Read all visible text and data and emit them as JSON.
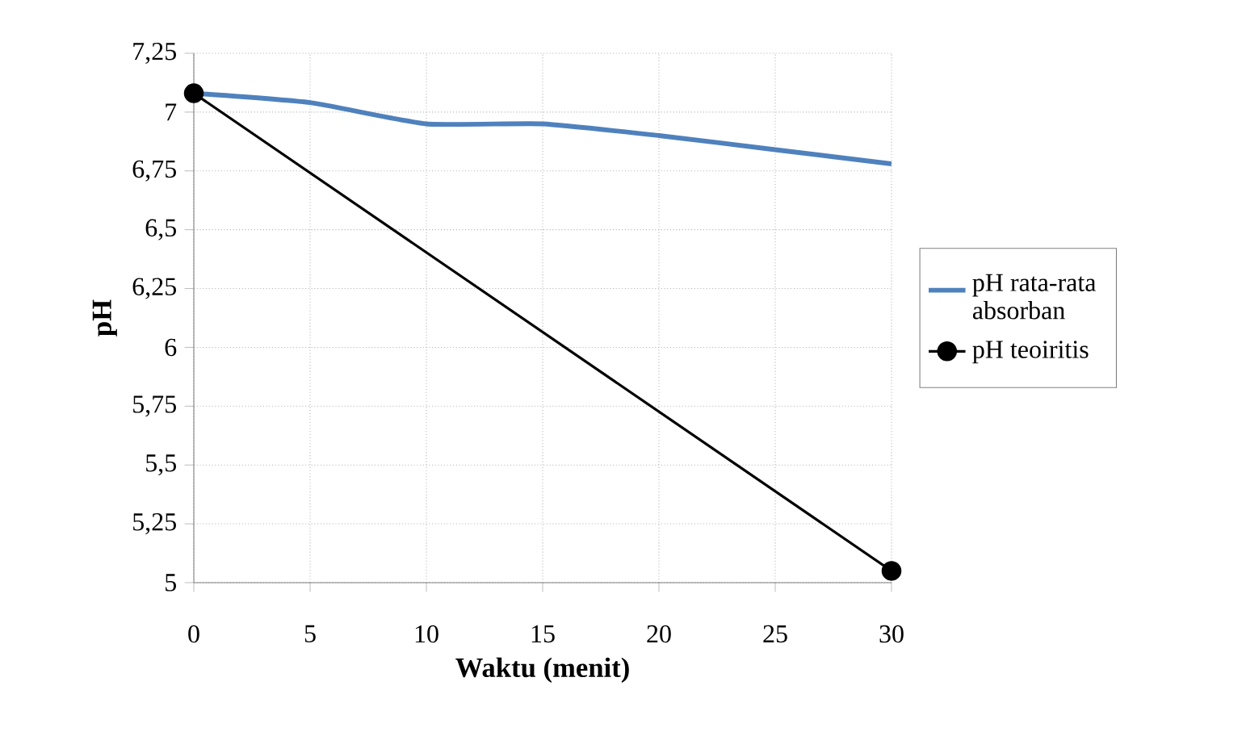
{
  "chart_data": {
    "type": "line",
    "xlabel": "Waktu (menit)",
    "ylabel": "pH",
    "x": [
      0,
      5,
      10,
      15,
      20,
      25,
      30
    ],
    "series": [
      {
        "name": "pH rata-rata absorban",
        "color": "#4f81bd",
        "marker": "none",
        "values": [
          7.08,
          7.04,
          6.95,
          6.95,
          6.9,
          6.84,
          6.78
        ]
      },
      {
        "name": "pH teoiritis",
        "color": "#000000",
        "marker": "circle",
        "x": [
          0,
          30
        ],
        "values": [
          7.08,
          5.05
        ]
      }
    ],
    "xlim": [
      0,
      30
    ],
    "xticks": [
      0,
      5,
      10,
      15,
      20,
      25,
      30
    ],
    "ylim": [
      5,
      7.25
    ],
    "yticks": [
      {
        "value": 5,
        "label": "5"
      },
      {
        "value": 5.25,
        "label": "5,25"
      },
      {
        "value": 5.5,
        "label": "5,5"
      },
      {
        "value": 5.75,
        "label": "5,75"
      },
      {
        "value": 6,
        "label": "6"
      },
      {
        "value": 6.25,
        "label": "6,25"
      },
      {
        "value": 6.5,
        "label": "6,5"
      },
      {
        "value": 6.75,
        "label": "6,75"
      },
      {
        "value": 7,
        "label": "7"
      },
      {
        "value": 7.25,
        "label": "7,25"
      }
    ],
    "grid": true,
    "legend": "right",
    "line_style": "solid"
  }
}
